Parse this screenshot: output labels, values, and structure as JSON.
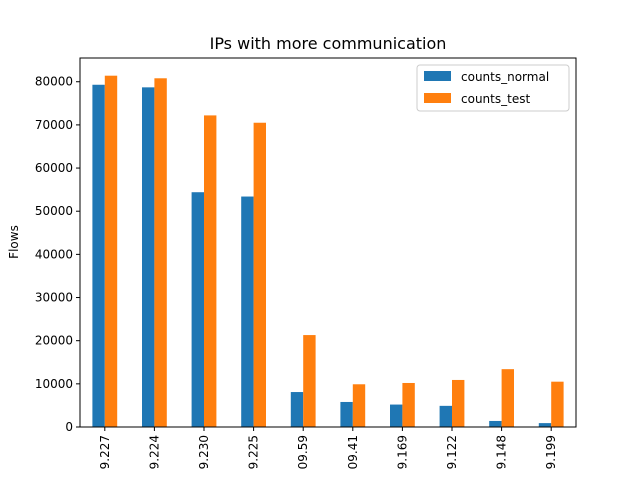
{
  "chart_data": {
    "type": "bar",
    "title": "IPs with more communication",
    "xlabel": "",
    "ylabel": "Flows",
    "categories": [
      "9.227",
      "9.224",
      "9.230",
      "9.225",
      "09.59",
      "09.41",
      "9.169",
      "9.122",
      "9.148",
      "9.199"
    ],
    "series": [
      {
        "name": "counts_normal",
        "color": "#1f77b4",
        "values": [
          79300,
          78700,
          54400,
          53400,
          8100,
          5800,
          5200,
          4900,
          1400,
          900
        ]
      },
      {
        "name": "counts_test",
        "color": "#ff7f0e",
        "values": [
          81400,
          80800,
          72200,
          70500,
          21300,
          9900,
          10200,
          10900,
          13400,
          10500
        ]
      }
    ],
    "ylim": [
      0,
      85500
    ],
    "yticks": [
      0,
      10000,
      20000,
      30000,
      40000,
      50000,
      60000,
      70000,
      80000
    ],
    "grid": false,
    "legend_position": "top-right"
  }
}
